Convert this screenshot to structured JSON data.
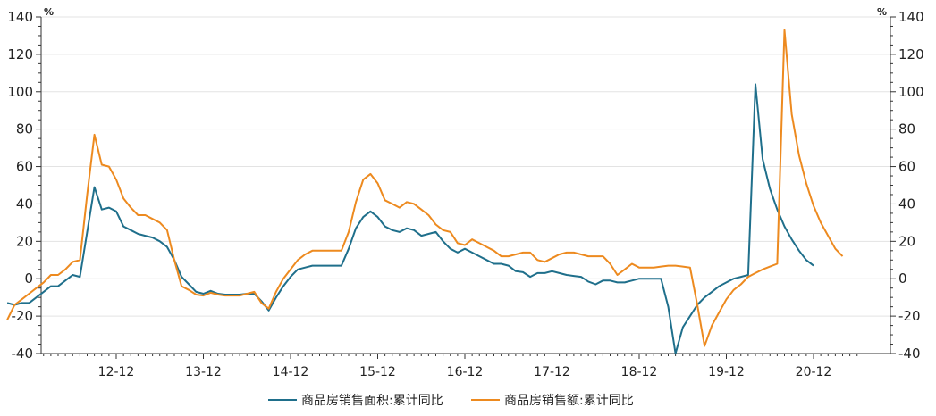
{
  "chart_data": {
    "type": "line",
    "left_unit": "%",
    "right_unit": "%",
    "ylim": [
      -40,
      140
    ],
    "yticks": [
      -40,
      -20,
      0,
      20,
      40,
      60,
      80,
      100,
      120,
      140
    ],
    "x_start": "2011-09",
    "x_end": "2021-06",
    "x_tick_labels": [
      "12-12",
      "13-12",
      "14-12",
      "15-12",
      "16-12",
      "17-12",
      "18-12",
      "19-12",
      "20-12"
    ],
    "grid": true,
    "legend_position": "bottom",
    "series": [
      {
        "name": "商品房销售面积:累计同比",
        "color": "#1f6f8b",
        "points": [
          [
            "2011-09",
            -13
          ],
          [
            "2011-10",
            -14
          ],
          [
            "2011-11",
            -13
          ],
          [
            "2011-12",
            -13
          ],
          [
            "2012-01",
            -10
          ],
          [
            "2012-02",
            -7
          ],
          [
            "2012-03",
            -4
          ],
          [
            "2012-04",
            -4
          ],
          [
            "2012-05",
            -1
          ],
          [
            "2012-06",
            2
          ],
          [
            "2012-07",
            1
          ],
          [
            "2012-08",
            25
          ],
          [
            "2012-09",
            49
          ],
          [
            "2012-10",
            37
          ],
          [
            "2012-11",
            38
          ],
          [
            "2012-12",
            36
          ],
          [
            "2013-01",
            28
          ],
          [
            "2013-02",
            26
          ],
          [
            "2013-03",
            24
          ],
          [
            "2013-04",
            23
          ],
          [
            "2013-05",
            22
          ],
          [
            "2013-06",
            20
          ],
          [
            "2013-07",
            17
          ],
          [
            "2013-08",
            10
          ],
          [
            "2013-09",
            1
          ],
          [
            "2013-10",
            -3
          ],
          [
            "2013-11",
            -7
          ],
          [
            "2013-12",
            -8
          ],
          [
            "2014-01",
            -6.5
          ],
          [
            "2014-02",
            -8
          ],
          [
            "2014-03",
            -8.5
          ],
          [
            "2014-04",
            -8.5
          ],
          [
            "2014-05",
            -8.5
          ],
          [
            "2014-06",
            -8
          ],
          [
            "2014-07",
            -8
          ],
          [
            "2014-08",
            -12
          ],
          [
            "2014-09",
            -17
          ],
          [
            "2014-10",
            -10
          ],
          [
            "2014-11",
            -4
          ],
          [
            "2014-12",
            1
          ],
          [
            "2015-01",
            5
          ],
          [
            "2015-02",
            6
          ],
          [
            "2015-03",
            7
          ],
          [
            "2015-04",
            7
          ],
          [
            "2015-05",
            7
          ],
          [
            "2015-06",
            7
          ],
          [
            "2015-07",
            7
          ],
          [
            "2015-08",
            16
          ],
          [
            "2015-09",
            27
          ],
          [
            "2015-10",
            33
          ],
          [
            "2015-11",
            36
          ],
          [
            "2015-12",
            33
          ],
          [
            "2016-01",
            28
          ],
          [
            "2016-02",
            26
          ],
          [
            "2016-03",
            25
          ],
          [
            "2016-04",
            27
          ],
          [
            "2016-05",
            26
          ],
          [
            "2016-06",
            23
          ],
          [
            "2016-07",
            24
          ],
          [
            "2016-08",
            25
          ],
          [
            "2016-09",
            20
          ],
          [
            "2016-10",
            16
          ],
          [
            "2016-11",
            14
          ],
          [
            "2016-12",
            16
          ],
          [
            "2017-01",
            14
          ],
          [
            "2017-02",
            12
          ],
          [
            "2017-03",
            10
          ],
          [
            "2017-04",
            8
          ],
          [
            "2017-05",
            8
          ],
          [
            "2017-06",
            7
          ],
          [
            "2017-07",
            4
          ],
          [
            "2017-08",
            3.5
          ],
          [
            "2017-09",
            1
          ],
          [
            "2017-10",
            3
          ],
          [
            "2017-11",
            3
          ],
          [
            "2017-12",
            4
          ],
          [
            "2018-01",
            3
          ],
          [
            "2018-02",
            2
          ],
          [
            "2018-03",
            1.5
          ],
          [
            "2018-04",
            1
          ],
          [
            "2018-05",
            -1.5
          ],
          [
            "2018-06",
            -3
          ],
          [
            "2018-07",
            -1
          ],
          [
            "2018-08",
            -1
          ],
          [
            "2018-09",
            -2
          ],
          [
            "2018-10",
            -2
          ],
          [
            "2018-11",
            -1
          ],
          [
            "2018-12",
            0
          ],
          [
            "2019-01",
            0
          ],
          [
            "2019-02",
            0
          ],
          [
            "2019-03",
            0
          ],
          [
            "2019-04",
            -15
          ],
          [
            "2019-05",
            -40
          ],
          [
            "2019-06",
            -26
          ],
          [
            "2019-07",
            -20
          ],
          [
            "2019-08",
            -14
          ],
          [
            "2019-09",
            -10
          ],
          [
            "2019-10",
            -7
          ],
          [
            "2019-11",
            -4
          ],
          [
            "2019-12",
            -2
          ],
          [
            "2020-01",
            0
          ],
          [
            "2020-02",
            1
          ],
          [
            "2020-03",
            2
          ],
          [
            "2020-04",
            104
          ],
          [
            "2020-05",
            64
          ],
          [
            "2020-06",
            48
          ],
          [
            "2020-07",
            37
          ],
          [
            "2020-08",
            28
          ],
          [
            "2020-09",
            21
          ],
          [
            "2020-10",
            15
          ],
          [
            "2020-11",
            10
          ],
          [
            "2020-12",
            7
          ]
        ]
      },
      {
        "name": "商品房销售额:累计同比",
        "color": "#ed8a1f",
        "points": [
          [
            "2011-09",
            -22
          ],
          [
            "2011-10",
            -14
          ],
          [
            "2011-11",
            -11
          ],
          [
            "2011-12",
            -8
          ],
          [
            "2012-01",
            -5
          ],
          [
            "2012-02",
            -2
          ],
          [
            "2012-03",
            2
          ],
          [
            "2012-04",
            2
          ],
          [
            "2012-05",
            5
          ],
          [
            "2012-06",
            9
          ],
          [
            "2012-07",
            10
          ],
          [
            "2012-08",
            45
          ],
          [
            "2012-09",
            77
          ],
          [
            "2012-10",
            61
          ],
          [
            "2012-11",
            60
          ],
          [
            "2012-12",
            53
          ],
          [
            "2013-01",
            43
          ],
          [
            "2013-02",
            38
          ],
          [
            "2013-03",
            34
          ],
          [
            "2013-04",
            34
          ],
          [
            "2013-05",
            32
          ],
          [
            "2013-06",
            30
          ],
          [
            "2013-07",
            26
          ],
          [
            "2013-08",
            10
          ],
          [
            "2013-09",
            -4
          ],
          [
            "2013-10",
            -6
          ],
          [
            "2013-11",
            -8.5
          ],
          [
            "2013-12",
            -9
          ],
          [
            "2014-01",
            -7.5
          ],
          [
            "2014-02",
            -8.5
          ],
          [
            "2014-03",
            -9
          ],
          [
            "2014-04",
            -9
          ],
          [
            "2014-05",
            -9
          ],
          [
            "2014-06",
            -8
          ],
          [
            "2014-07",
            -7
          ],
          [
            "2014-08",
            -13
          ],
          [
            "2014-09",
            -16
          ],
          [
            "2014-10",
            -7
          ],
          [
            "2014-11",
            0
          ],
          [
            "2014-12",
            5
          ],
          [
            "2015-01",
            10
          ],
          [
            "2015-02",
            13
          ],
          [
            "2015-03",
            15
          ],
          [
            "2015-04",
            15
          ],
          [
            "2015-05",
            15
          ],
          [
            "2015-06",
            15
          ],
          [
            "2015-07",
            15
          ],
          [
            "2015-08",
            25
          ],
          [
            "2015-09",
            41
          ],
          [
            "2015-10",
            53
          ],
          [
            "2015-11",
            56
          ],
          [
            "2015-12",
            51
          ],
          [
            "2016-01",
            42
          ],
          [
            "2016-02",
            40
          ],
          [
            "2016-03",
            38
          ],
          [
            "2016-04",
            41
          ],
          [
            "2016-05",
            40
          ],
          [
            "2016-06",
            37
          ],
          [
            "2016-07",
            34
          ],
          [
            "2016-08",
            29
          ],
          [
            "2016-09",
            26
          ],
          [
            "2016-10",
            25
          ],
          [
            "2016-11",
            19
          ],
          [
            "2016-12",
            18
          ],
          [
            "2017-01",
            21
          ],
          [
            "2017-02",
            19
          ],
          [
            "2017-03",
            17
          ],
          [
            "2017-04",
            15
          ],
          [
            "2017-05",
            12
          ],
          [
            "2017-06",
            12
          ],
          [
            "2017-07",
            13
          ],
          [
            "2017-08",
            14
          ],
          [
            "2017-09",
            14
          ],
          [
            "2017-10",
            10
          ],
          [
            "2017-11",
            9
          ],
          [
            "2017-12",
            11
          ],
          [
            "2018-01",
            13
          ],
          [
            "2018-02",
            14
          ],
          [
            "2018-03",
            14
          ],
          [
            "2018-04",
            13
          ],
          [
            "2018-05",
            12
          ],
          [
            "2018-06",
            12
          ],
          [
            "2018-07",
            12
          ],
          [
            "2018-08",
            8
          ],
          [
            "2018-09",
            2
          ],
          [
            "2018-10",
            5
          ],
          [
            "2018-11",
            8
          ],
          [
            "2018-12",
            6
          ],
          [
            "2019-01",
            6
          ],
          [
            "2019-02",
            6
          ],
          [
            "2019-03",
            6.5
          ],
          [
            "2019-04",
            7
          ],
          [
            "2019-05",
            7
          ],
          [
            "2019-06",
            6.5
          ],
          [
            "2019-07",
            6
          ],
          [
            "2019-08",
            -14
          ],
          [
            "2019-09",
            -36
          ],
          [
            "2019-10",
            -25
          ],
          [
            "2019-11",
            -18
          ],
          [
            "2019-12",
            -11
          ],
          [
            "2020-01",
            -6
          ],
          [
            "2020-02",
            -3
          ],
          [
            "2020-03",
            1
          ],
          [
            "2020-04",
            3
          ],
          [
            "2020-05",
            5
          ],
          [
            "2020-06",
            6.5
          ],
          [
            "2020-07",
            8
          ],
          [
            "2020-08",
            133
          ],
          [
            "2020-09",
            88
          ],
          [
            "2020-10",
            66
          ],
          [
            "2020-11",
            51
          ],
          [
            "2020-12",
            39
          ],
          [
            "2021-01",
            30
          ],
          [
            "2021-02",
            23
          ],
          [
            "2021-03",
            16
          ],
          [
            "2021-04",
            12
          ]
        ]
      }
    ]
  }
}
